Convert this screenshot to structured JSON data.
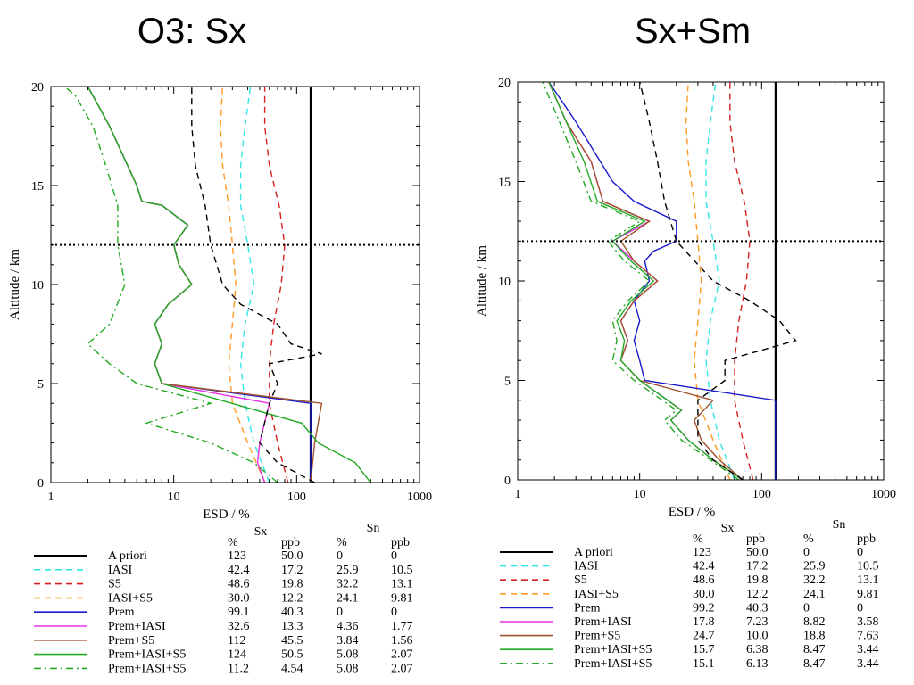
{
  "chart_data": [
    {
      "type": "line",
      "title": "O3: Sx",
      "xlabel": "ESD / %",
      "ylabel": "Altitude / km",
      "xscale": "log",
      "xlim": [
        1,
        1000
      ],
      "ylim": [
        0,
        20
      ],
      "x_tick_labels": [
        "1",
        "10",
        "100",
        "1000"
      ],
      "y_tick_labels": [
        "0",
        "5",
        "10",
        "15",
        "20"
      ],
      "reference_altitude_km": 12,
      "grid": false,
      "legend_position": "bottom",
      "table": {
        "group_headers": [
          "Sx",
          "Sn"
        ],
        "column_headers": [
          "%",
          "ppb",
          "%",
          "ppb"
        ],
        "rows": [
          {
            "label": "A priori",
            "values": [
              "123",
              "50.0",
              "0",
              "0"
            ]
          },
          {
            "label": "IASI",
            "values": [
              "42.4",
              "17.2",
              "25.9",
              "10.5"
            ]
          },
          {
            "label": "S5",
            "values": [
              "48.6",
              "19.8",
              "32.2",
              "13.1"
            ]
          },
          {
            "label": "IASI+S5",
            "values": [
              "30.0",
              "12.2",
              "24.1",
              "9.81"
            ]
          },
          {
            "label": "Prem",
            "values": [
              "99.1",
              "40.3",
              "0",
              "0"
            ]
          },
          {
            "label": "Prem+IASI",
            "values": [
              "32.6",
              "13.3",
              "4.36",
              "1.77"
            ]
          },
          {
            "label": "Prem+S5",
            "values": [
              "112",
              "45.5",
              "3.84",
              "1.56"
            ]
          },
          {
            "label": "Prem+IASI+S5",
            "values": [
              "124",
              "50.5",
              "5.08",
              "2.07"
            ]
          },
          {
            "label": "Prem+IASI+S5",
            "values": [
              "11.2",
              "4.54",
              "5.08",
              "2.07"
            ]
          }
        ]
      },
      "series": [
        {
          "name": "A priori",
          "color": "#000000",
          "dash": "solid",
          "x": [
            130,
            130,
            130,
            130,
            130
          ],
          "y": [
            0,
            5,
            10,
            15,
            20
          ]
        },
        {
          "name": "IASI",
          "color": "#33e6e6",
          "dash": "dashed",
          "x": [
            60,
            45,
            38,
            35,
            38,
            45,
            40,
            35,
            35,
            38,
            42
          ],
          "y": [
            0,
            2,
            4,
            6,
            8,
            10,
            12,
            14,
            16,
            18,
            20
          ]
        },
        {
          "name": "S5",
          "color": "#d62020",
          "dash": "dashed",
          "x": [
            85,
            70,
            60,
            60,
            65,
            75,
            80,
            72,
            60,
            55,
            55
          ],
          "y": [
            0,
            2,
            4,
            6,
            8,
            10,
            12,
            14,
            16,
            18,
            20
          ]
        },
        {
          "name": "IASI+S5",
          "color": "#ff9a26",
          "dash": "dashed",
          "x": [
            55,
            40,
            30,
            28,
            30,
            32,
            30,
            28,
            25,
            24,
            25
          ],
          "y": [
            0,
            2,
            4,
            6,
            8,
            10,
            12,
            14,
            16,
            18,
            20
          ]
        },
        {
          "name": "Prem",
          "color": "#1a1acc",
          "dash": "solid",
          "x": [
            130,
            130,
            130,
            8,
            7,
            8,
            7,
            9,
            14,
            11,
            10,
            13,
            8,
            5.5,
            5,
            3,
            2
          ],
          "y": [
            0,
            2,
            4,
            5,
            6,
            7,
            8,
            9,
            10,
            11,
            12,
            13,
            14,
            14.2,
            15,
            18,
            20
          ]
        },
        {
          "name": "Prem+IASI",
          "color": "#e633e6",
          "dash": "solid",
          "x": [
            55,
            48,
            50,
            60,
            8,
            7,
            8,
            7,
            9,
            14,
            11,
            10,
            13,
            8,
            5.5,
            5,
            3,
            2
          ],
          "y": [
            0,
            1,
            2,
            4,
            5,
            6,
            7,
            8,
            9,
            10,
            11,
            12,
            13,
            14,
            14.2,
            15,
            18,
            20
          ]
        },
        {
          "name": "Prem+S5",
          "color": "#a0522d",
          "dash": "solid",
          "x": [
            130,
            140,
            160,
            8,
            7,
            8,
            7,
            9,
            14,
            11,
            10,
            13,
            8,
            5.5,
            5,
            3,
            2
          ],
          "y": [
            0,
            2,
            4,
            5,
            6,
            7,
            8,
            9,
            10,
            11,
            12,
            13,
            14,
            14.2,
            15,
            18,
            20
          ]
        },
        {
          "name": "Prem+IASI+S5",
          "color": "#22aa22",
          "dash": "solid",
          "x": [
            400,
            300,
            150,
            110,
            8,
            7,
            8,
            7,
            9,
            14,
            11,
            10,
            13,
            8,
            5.5,
            5,
            3,
            2
          ],
          "y": [
            0,
            1,
            2,
            3,
            5,
            6,
            7,
            8,
            9,
            10,
            11,
            12,
            13,
            14,
            14.2,
            15,
            18,
            20
          ]
        },
        {
          "name": "Prem+IASI+S5",
          "color": "#22aa22",
          "dash": "dashdot",
          "x": [
            70,
            45,
            20,
            6,
            20,
            5,
            3,
            2,
            3,
            4,
            3.5,
            3.5,
            2.8,
            2.2,
            1.6,
            1.3
          ],
          "y": [
            0,
            1,
            2,
            3,
            4,
            5,
            6,
            7,
            8,
            10,
            12,
            14,
            16,
            18,
            19.5,
            20
          ]
        },
        {
          "name": "A priori (dashed)",
          "color": "#000000",
          "dash": "dashed",
          "x": [
            140,
            70,
            50,
            60,
            70,
            60,
            160,
            90,
            70,
            35,
            25,
            20,
            18,
            15,
            14,
            14
          ],
          "y": [
            0,
            1,
            2,
            4,
            5,
            6,
            6.5,
            7,
            8,
            9,
            10,
            12,
            14,
            16,
            18,
            20
          ]
        }
      ]
    },
    {
      "type": "line",
      "title": "Sx+Sm",
      "xlabel": "ESD / %",
      "ylabel": "Altitude / km",
      "xscale": "log",
      "xlim": [
        1,
        1000
      ],
      "ylim": [
        0,
        20
      ],
      "x_tick_labels": [
        "1",
        "10",
        "100",
        "1000"
      ],
      "y_tick_labels": [
        "0",
        "5",
        "10",
        "15",
        "20"
      ],
      "reference_altitude_km": 12,
      "grid": false,
      "legend_position": "bottom",
      "table": {
        "group_headers": [
          "Sx",
          "Sn"
        ],
        "column_headers": [
          "%",
          "ppb",
          "%",
          "ppb"
        ],
        "rows": [
          {
            "label": "A priori",
            "values": [
              "123",
              "50.0",
              "0",
              "0"
            ]
          },
          {
            "label": "IASI",
            "values": [
              "42.4",
              "17.2",
              "25.9",
              "10.5"
            ]
          },
          {
            "label": "S5",
            "values": [
              "48.6",
              "19.8",
              "32.2",
              "13.1"
            ]
          },
          {
            "label": "IASI+S5",
            "values": [
              "30.0",
              "12.2",
              "24.1",
              "9.81"
            ]
          },
          {
            "label": "Prem",
            "values": [
              "99.2",
              "40.3",
              "0",
              "0"
            ]
          },
          {
            "label": "Prem+IASI",
            "values": [
              "17.8",
              "7.23",
              "8.82",
              "3.58"
            ]
          },
          {
            "label": "Prem+S5",
            "values": [
              "24.7",
              "10.0",
              "18.8",
              "7.63"
            ]
          },
          {
            "label": "Prem+IASI+S5",
            "values": [
              "15.7",
              "6.38",
              "8.47",
              "3.44"
            ]
          },
          {
            "label": "Prem+IASI+S5",
            "values": [
              "15.1",
              "6.13",
              "8.47",
              "3.44"
            ]
          }
        ]
      },
      "series": [
        {
          "name": "A priori",
          "color": "#000000",
          "dash": "solid",
          "x": [
            130,
            130,
            130,
            130,
            130
          ],
          "y": [
            0,
            5,
            10,
            15,
            20
          ]
        },
        {
          "name": "IASI",
          "color": "#33e6e6",
          "dash": "dashed",
          "x": [
            60,
            45,
            38,
            35,
            38,
            45,
            40,
            35,
            35,
            38,
            42
          ],
          "y": [
            0,
            2,
            4,
            6,
            8,
            10,
            12,
            14,
            16,
            18,
            20
          ]
        },
        {
          "name": "S5",
          "color": "#d62020",
          "dash": "dashed",
          "x": [
            85,
            70,
            60,
            60,
            65,
            75,
            80,
            72,
            60,
            55,
            55
          ],
          "y": [
            0,
            2,
            4,
            6,
            8,
            10,
            12,
            14,
            16,
            18,
            20
          ]
        },
        {
          "name": "IASI+S5",
          "color": "#ff9a26",
          "dash": "dashed",
          "x": [
            55,
            40,
            30,
            28,
            30,
            32,
            30,
            28,
            25,
            24,
            25
          ],
          "y": [
            0,
            2,
            4,
            6,
            8,
            10,
            12,
            14,
            16,
            18,
            20
          ]
        },
        {
          "name": "Prem",
          "color": "#1a1acc",
          "dash": "solid",
          "x": [
            130,
            130,
            11,
            10,
            9,
            10,
            9,
            12,
            11,
            13,
            20,
            20,
            9,
            6,
            3,
            1.8
          ],
          "y": [
            0,
            4,
            5,
            6,
            7,
            8,
            9,
            10,
            11,
            11.5,
            12,
            13,
            14,
            15,
            18,
            20
          ]
        },
        {
          "name": "Prem+IASI",
          "color": "#e633e6",
          "dash": "solid",
          "x": [
            70,
            40,
            25,
            18,
            22,
            10,
            7,
            8,
            7,
            9,
            14,
            9,
            6,
            12,
            5,
            4,
            2.5,
            1.8
          ],
          "y": [
            0,
            1,
            2,
            3,
            3.5,
            5,
            6,
            7,
            8,
            9,
            10,
            11,
            12,
            13,
            14,
            16,
            18,
            20
          ]
        },
        {
          "name": "Prem+S5",
          "color": "#a0522d",
          "dash": "solid",
          "x": [
            70,
            45,
            32,
            28,
            40,
            10,
            7,
            8,
            7,
            9,
            14,
            9,
            7,
            12,
            5,
            4,
            2.5,
            1.8
          ],
          "y": [
            0,
            1,
            2,
            3,
            4,
            5,
            6,
            7,
            8,
            9,
            10,
            11,
            12,
            13,
            14,
            16,
            18,
            20
          ]
        },
        {
          "name": "Prem+IASI+S5",
          "color": "#22aa22",
          "dash": "solid",
          "x": [
            70,
            40,
            25,
            18,
            22,
            10,
            7,
            7.5,
            6.5,
            8.5,
            13,
            8.5,
            6,
            11,
            4.5,
            3.5,
            2.5,
            1.8
          ],
          "y": [
            0,
            1,
            2,
            3,
            3.5,
            5,
            6,
            7,
            8,
            9,
            10,
            11,
            12,
            13,
            14,
            16,
            18,
            20
          ]
        },
        {
          "name": "Prem+IASI+S5",
          "color": "#22aa22",
          "dash": "dashdot",
          "x": [
            65,
            38,
            22,
            16,
            20,
            9,
            6,
            6.5,
            6,
            8,
            12,
            7.5,
            5.5,
            10,
            4,
            3,
            2.2,
            1.6
          ],
          "y": [
            0,
            1,
            2,
            3,
            3.5,
            5,
            6,
            7,
            8,
            9,
            10,
            11,
            12,
            13,
            14,
            16,
            18,
            20
          ]
        },
        {
          "name": "A priori (dashed)",
          "color": "#000000",
          "dash": "dashed",
          "x": [
            70,
            40,
            30,
            30,
            50,
            50,
            190,
            140,
            80,
            40,
            20,
            16,
            14,
            12,
            11,
            10
          ],
          "y": [
            0,
            1,
            2,
            4,
            5,
            6,
            7,
            8,
            9,
            10,
            12,
            14,
            16,
            18,
            19,
            20
          ]
        }
      ]
    }
  ],
  "legend_styles": [
    {
      "color": "#000000",
      "dash": "solid"
    },
    {
      "color": "#33e6e6",
      "dash": "dashed"
    },
    {
      "color": "#d62020",
      "dash": "dashed"
    },
    {
      "color": "#ff9a26",
      "dash": "dashed"
    },
    {
      "color": "#1a1acc",
      "dash": "solid"
    },
    {
      "color": "#e633e6",
      "dash": "solid"
    },
    {
      "color": "#a0522d",
      "dash": "solid"
    },
    {
      "color": "#22aa22",
      "dash": "solid"
    },
    {
      "color": "#22aa22",
      "dash": "dashdot"
    }
  ]
}
